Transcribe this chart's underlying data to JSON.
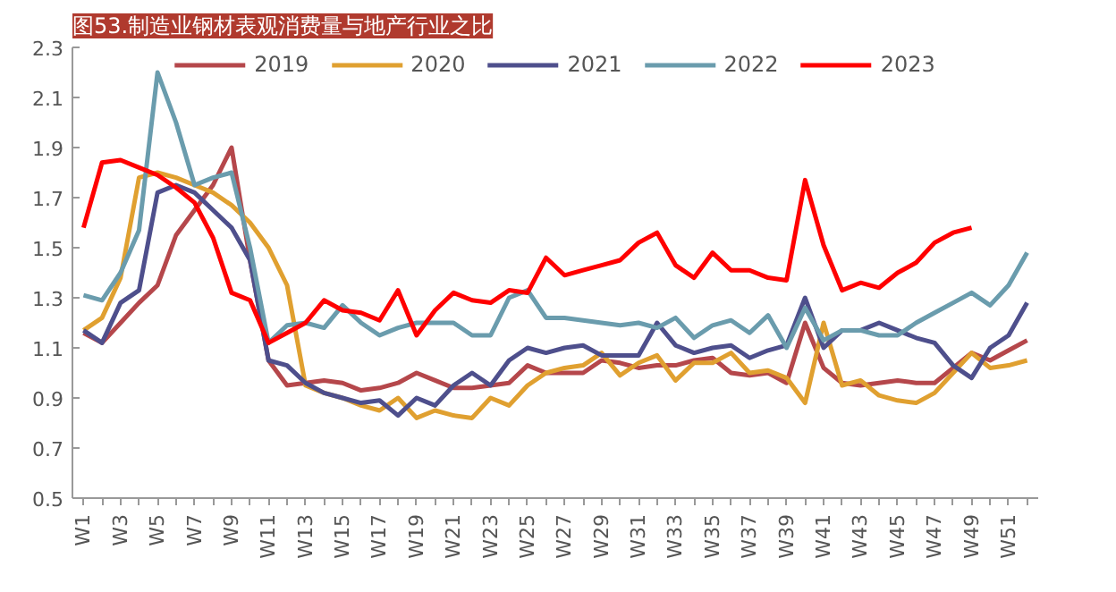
{
  "chart_data": {
    "type": "line",
    "title": "图53.制造业钢材表观消费量与地产行业之比",
    "categories": [
      "W1",
      null,
      "W3",
      null,
      "W5",
      null,
      "W7",
      null,
      "W9",
      null,
      "W11",
      null,
      "W13",
      null,
      "W15",
      null,
      "W17",
      null,
      "W19",
      null,
      "W21",
      null,
      "W23",
      null,
      "W25",
      null,
      "W27",
      null,
      "W29",
      null,
      "W31",
      null,
      "W33",
      null,
      "W35",
      null,
      "W37",
      null,
      "W39",
      null,
      "W41",
      null,
      "W43",
      null,
      "W45",
      null,
      "W47",
      null,
      "W49",
      null,
      "W51",
      null
    ],
    "series": [
      {
        "name": "2019",
        "color": "#b5474b",
        "values": [
          1.16,
          1.12,
          1.2,
          1.28,
          1.35,
          1.55,
          1.65,
          1.75,
          1.9,
          1.45,
          1.05,
          0.95,
          0.96,
          0.97,
          0.96,
          0.93,
          0.94,
          0.96,
          1.0,
          0.97,
          0.94,
          0.94,
          0.95,
          0.96,
          1.03,
          1.0,
          1.0,
          1.0,
          1.05,
          1.04,
          1.02,
          1.03,
          1.03,
          1.05,
          1.06,
          1.0,
          0.99,
          1.0,
          0.96,
          1.2,
          1.02,
          0.96,
          0.95,
          0.96,
          0.97,
          0.96,
          0.96,
          1.02,
          1.08,
          1.05,
          1.09,
          1.13
        ]
      },
      {
        "name": "2020",
        "color": "#e0a030",
        "values": [
          1.17,
          1.22,
          1.38,
          1.78,
          1.8,
          1.78,
          1.75,
          1.72,
          1.67,
          1.6,
          1.5,
          1.35,
          0.95,
          0.92,
          0.9,
          0.87,
          0.85,
          0.9,
          0.82,
          0.85,
          0.83,
          0.82,
          0.9,
          0.87,
          0.95,
          1.0,
          1.02,
          1.03,
          1.08,
          0.99,
          1.04,
          1.07,
          0.97,
          1.04,
          1.04,
          1.08,
          1.0,
          1.01,
          0.98,
          0.88,
          1.2,
          0.95,
          0.97,
          0.91,
          0.89,
          0.88,
          0.92,
          1.0,
          1.08,
          1.02,
          1.03,
          1.05
        ]
      },
      {
        "name": "2021",
        "color": "#4e4f8c",
        "values": [
          1.17,
          1.12,
          1.28,
          1.33,
          1.72,
          1.75,
          1.72,
          1.65,
          1.58,
          1.45,
          1.05,
          1.03,
          0.96,
          0.92,
          0.9,
          0.88,
          0.89,
          0.83,
          0.9,
          0.87,
          0.95,
          1.0,
          0.95,
          1.05,
          1.1,
          1.08,
          1.1,
          1.11,
          1.07,
          1.07,
          1.07,
          1.2,
          1.11,
          1.08,
          1.1,
          1.11,
          1.06,
          1.09,
          1.11,
          1.3,
          1.1,
          1.17,
          1.17,
          1.2,
          1.17,
          1.14,
          1.12,
          1.03,
          0.98,
          1.1,
          1.15,
          1.28
        ]
      },
      {
        "name": "2022",
        "color": "#6a9cad",
        "values": [
          1.31,
          1.29,
          1.4,
          1.57,
          2.2,
          2.0,
          1.75,
          1.78,
          1.8,
          1.5,
          1.12,
          1.19,
          1.2,
          1.18,
          1.27,
          1.2,
          1.15,
          1.18,
          1.2,
          1.2,
          1.2,
          1.15,
          1.15,
          1.3,
          1.33,
          1.22,
          1.22,
          1.21,
          1.2,
          1.19,
          1.2,
          1.18,
          1.22,
          1.14,
          1.19,
          1.21,
          1.16,
          1.23,
          1.1,
          1.26,
          1.13,
          1.17,
          1.17,
          1.15,
          1.15,
          1.2,
          1.24,
          1.28,
          1.32,
          1.27,
          1.35,
          1.48
        ]
      },
      {
        "name": "2023",
        "color": "#ff0000",
        "values": [
          1.58,
          1.84,
          1.85,
          1.82,
          1.79,
          1.74,
          1.68,
          1.54,
          1.32,
          1.29,
          1.12,
          1.16,
          1.2,
          1.29,
          1.25,
          1.24,
          1.21,
          1.33,
          1.15,
          1.25,
          1.32,
          1.29,
          1.28,
          1.33,
          1.32,
          1.46,
          1.39,
          1.41,
          1.43,
          1.45,
          1.52,
          1.56,
          1.43,
          1.38,
          1.48,
          1.41,
          1.41,
          1.38,
          1.37,
          1.77,
          1.51,
          1.33,
          1.36,
          1.34,
          1.4,
          1.44,
          1.52,
          1.56,
          1.58,
          null,
          null,
          null
        ]
      }
    ],
    "ylim": [
      0.5,
      2.3
    ],
    "yticks": [
      0.5,
      0.7,
      0.9,
      1.1,
      1.3,
      1.5,
      1.7,
      1.9,
      2.1,
      2.3
    ],
    "grid": false,
    "legend": "top",
    "marker": "none",
    "line_style": "solid"
  }
}
